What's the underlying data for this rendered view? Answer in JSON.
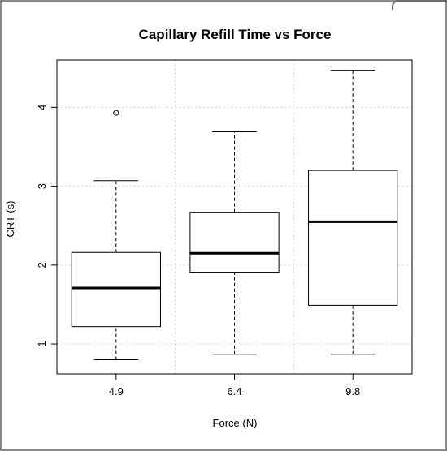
{
  "chart_data": {
    "type": "boxplot",
    "title": "Capillary Refill Time vs Force",
    "xlabel": "Force (N)",
    "ylabel": "CRT (s)",
    "categories": [
      "4.9",
      "6.4",
      "9.8"
    ],
    "y_ticks": [
      "1",
      "2",
      "3",
      "4"
    ],
    "ylim": [
      0.62,
      4.6
    ],
    "grid": true,
    "boxes": [
      {
        "category": "4.9",
        "min": 0.8,
        "q1": 1.22,
        "median": 1.71,
        "q3": 2.16,
        "max": 3.07,
        "outliers": [
          3.93
        ]
      },
      {
        "category": "6.4",
        "min": 0.87,
        "q1": 1.91,
        "median": 2.15,
        "q3": 2.67,
        "max": 3.69,
        "outliers": []
      },
      {
        "category": "9.8",
        "min": 0.87,
        "q1": 1.49,
        "median": 2.55,
        "q3": 3.2,
        "max": 4.47,
        "outliers": []
      }
    ]
  }
}
